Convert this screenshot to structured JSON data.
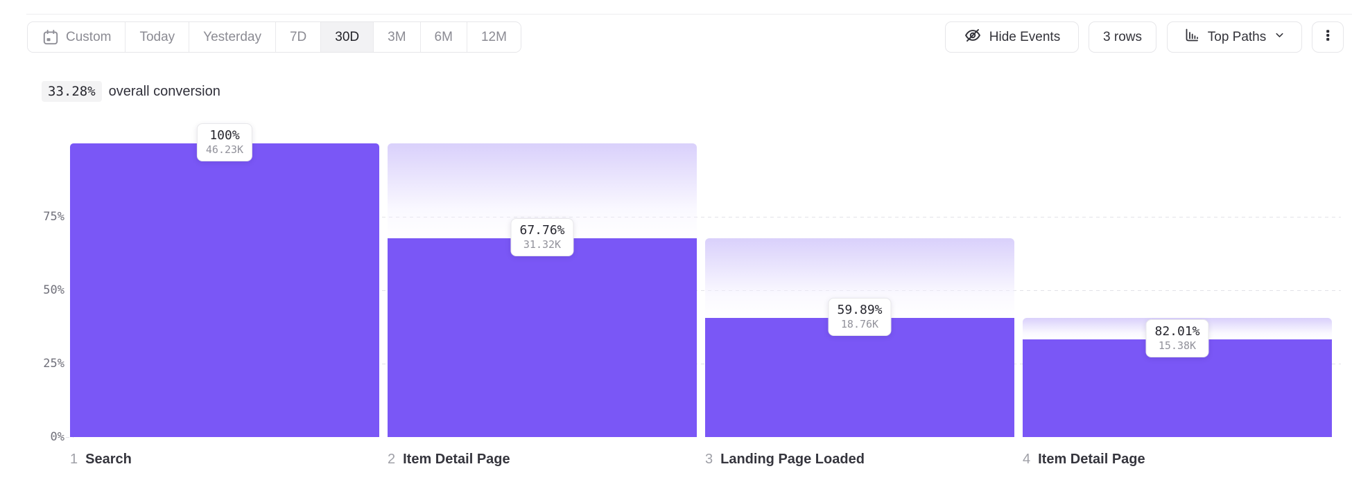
{
  "toolbar": {
    "date_ranges": [
      {
        "label": "Custom",
        "icon": "calendar-icon"
      },
      {
        "label": "Today"
      },
      {
        "label": "Yesterday"
      },
      {
        "label": "7D"
      },
      {
        "label": "30D"
      },
      {
        "label": "3M"
      },
      {
        "label": "6M"
      },
      {
        "label": "12M"
      }
    ],
    "selected_range": "30D",
    "hide_events_label": "Hide Events",
    "rows_label": "3 rows",
    "top_paths_label": "Top Paths"
  },
  "summary": {
    "value": "33.28%",
    "label": "overall conversion"
  },
  "chart_data": {
    "type": "bar",
    "subtype": "funnel",
    "title": "",
    "overall_conversion": "33.28%",
    "grid": "dashed-horizontal",
    "y_axis": {
      "max_pct": 100,
      "ticks": [
        {
          "label": "75%",
          "pct": 75
        },
        {
          "label": "50%",
          "pct": 50
        },
        {
          "label": "25%",
          "pct": 25
        },
        {
          "label": "0%",
          "pct": 0
        }
      ]
    },
    "steps": [
      {
        "index": "1",
        "name": "Search",
        "conversion_label": "100%",
        "count_label": "46.23K",
        "height_pct": 100,
        "ghost_pct": null
      },
      {
        "index": "2",
        "name": "Item Detail Page",
        "conversion_label": "67.76%",
        "count_label": "31.32K",
        "height_pct": 67.76,
        "ghost_pct": 100
      },
      {
        "index": "3",
        "name": "Landing Page Loaded",
        "conversion_label": "59.89%",
        "count_label": "18.76K",
        "height_pct": 40.58,
        "ghost_pct": 67.76
      },
      {
        "index": "4",
        "name": "Item Detail Page",
        "conversion_label": "82.01%",
        "count_label": "15.38K",
        "height_pct": 33.27,
        "ghost_pct": 40.58
      }
    ],
    "colors": {
      "bar": "#7a57f6",
      "ghost_gradient_top": "#d9d0fb",
      "gridline": "#e2e2e7",
      "accent_dark_text": "#26262e",
      "muted_text": "#92929b"
    }
  }
}
